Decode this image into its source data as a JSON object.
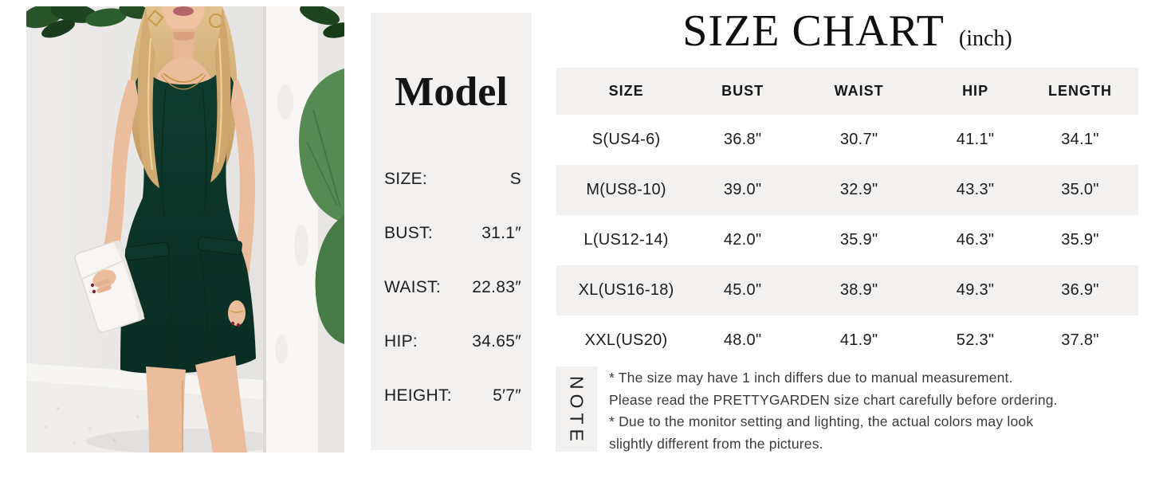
{
  "model_panel": {
    "title": "Model",
    "rows": [
      {
        "label": "SIZE:",
        "value": "S"
      },
      {
        "label": "BUST:",
        "value": "31.1″"
      },
      {
        "label": "WAIST:",
        "value": "22.83″"
      },
      {
        "label": "HIP:",
        "value": "34.65″"
      },
      {
        "label": "HEIGHT:",
        "value": "5′7″"
      }
    ]
  },
  "size_chart": {
    "title": "SIZE CHART",
    "unit_label": "(inch)",
    "columns": [
      "SIZE",
      "BUST",
      "WAIST",
      "HIP",
      "LENGTH"
    ],
    "column_keys": [
      "size",
      "bust",
      "waist",
      "hip",
      "length"
    ],
    "rows": [
      {
        "size": "S(US4-6)",
        "bust": "36.8\"",
        "waist": "30.7\"",
        "hip": "41.1\"",
        "length": "34.1\""
      },
      {
        "size": "M(US8-10)",
        "bust": "39.0\"",
        "waist": "32.9\"",
        "hip": "43.3\"",
        "length": "35.0\""
      },
      {
        "size": "L(US12-14)",
        "bust": "42.0\"",
        "waist": "35.9\"",
        "hip": "46.3\"",
        "length": "35.9\""
      },
      {
        "size": "XL(US16-18)",
        "bust": "45.0\"",
        "waist": "38.9\"",
        "hip": "49.3\"",
        "length": "36.9\""
      },
      {
        "size": "XXL(US20)",
        "bust": "48.0\"",
        "waist": "41.9\"",
        "hip": "52.3\"",
        "length": "37.8\""
      }
    ]
  },
  "note": {
    "label": "NOTE",
    "lines": [
      "* The size may have 1 inch differs due to manual measurement.",
      "Please read the PRETTYGARDEN size chart carefully before ordering.",
      "* Due to the monitor setting and lighting, the actual colors may look",
      "slightly different from the pictures."
    ]
  },
  "colors": {
    "panel_bg": "#f2f1ef",
    "alt_row_bg": "#f2f1ef",
    "dress_green": "#0d3328",
    "text": "#1d1d1d"
  },
  "chart_data": {
    "type": "table",
    "title": "SIZE CHART (inch)",
    "units": "inch",
    "columns": [
      "SIZE",
      "BUST",
      "WAIST",
      "HIP",
      "LENGTH"
    ],
    "rows": [
      [
        "S(US4-6)",
        36.8,
        30.7,
        41.1,
        34.1
      ],
      [
        "M(US8-10)",
        39.0,
        32.9,
        43.3,
        35.0
      ],
      [
        "L(US12-14)",
        42.0,
        35.9,
        46.3,
        35.9
      ],
      [
        "XL(US16-18)",
        45.0,
        38.9,
        49.3,
        36.9
      ],
      [
        "XXL(US20)",
        48.0,
        41.9,
        52.3,
        37.8
      ]
    ],
    "model_reference": {
      "size": "S",
      "bust_in": 31.1,
      "waist_in": 22.83,
      "hip_in": 34.65,
      "height": "5'7\""
    }
  }
}
